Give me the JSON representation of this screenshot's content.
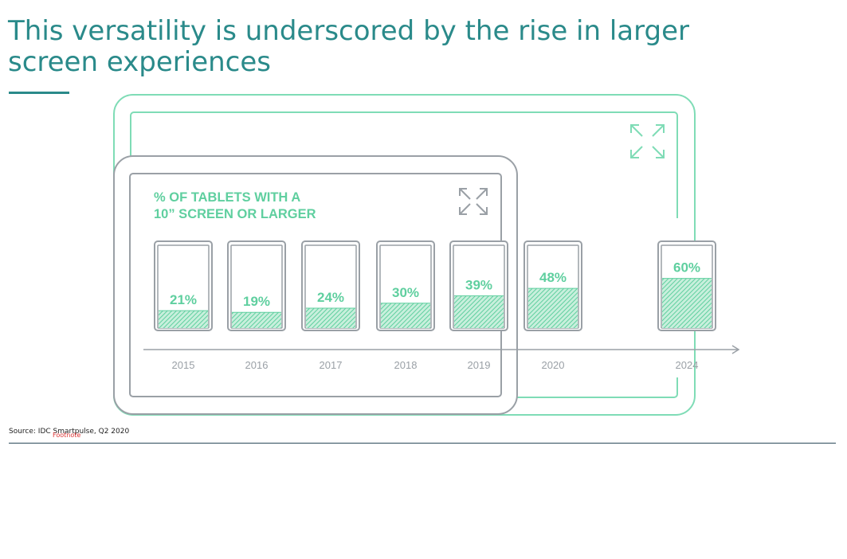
{
  "title": "This versatility is underscored by the rise in larger screen experiences",
  "source": "Source: IDC Smartpulse, Q2 2020",
  "footnote": "Footnote",
  "colors": {
    "accent": "#5fcf9f",
    "title": "#2a8a8a",
    "frame": "#9aa0a6"
  },
  "icons": [
    "expand-arrows-icon"
  ],
  "chart_data": {
    "type": "bar",
    "title_lines": [
      "% OF TABLETS WITH A",
      "10” SCREEN OR LARGER"
    ],
    "categories": [
      "2015",
      "2016",
      "2017",
      "2018",
      "2019",
      "2020",
      "2024"
    ],
    "values": [
      21,
      19,
      24,
      30,
      39,
      48,
      60
    ],
    "value_labels": [
      "21%",
      "19%",
      "24%",
      "30%",
      "39%",
      "48%",
      "60%"
    ],
    "ylim": [
      0,
      100
    ],
    "xlabel": "",
    "ylabel": ""
  }
}
